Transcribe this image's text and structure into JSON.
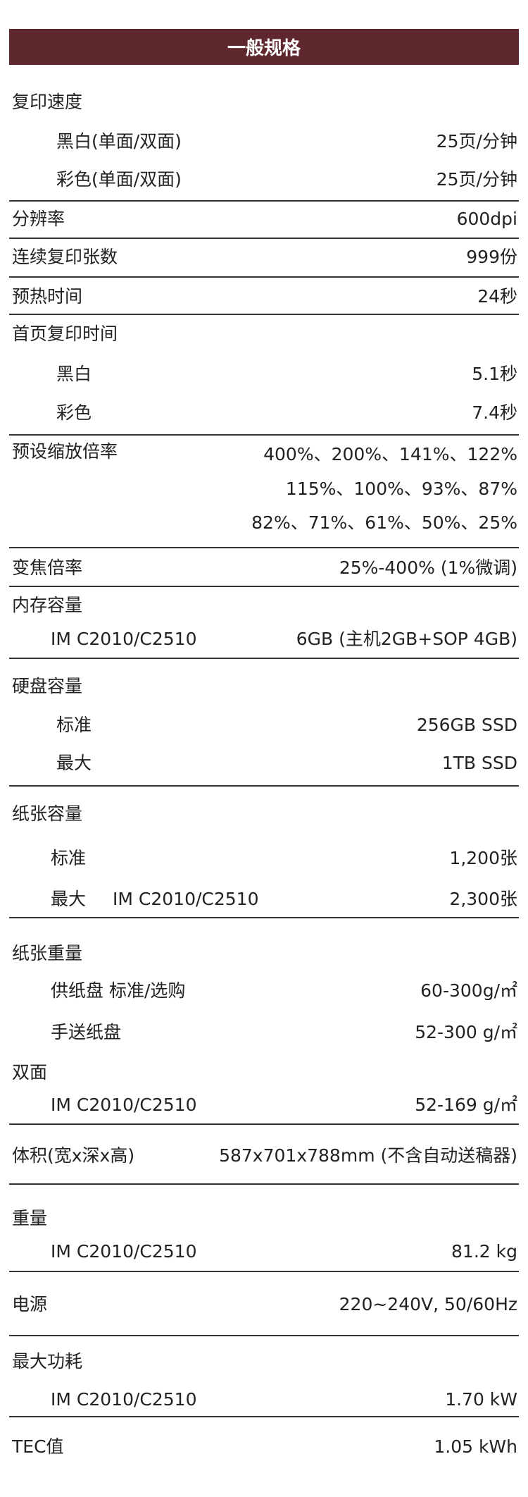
{
  "header": {
    "title": "一般规格"
  },
  "copy_speed": {
    "label": "复印速度",
    "bw_label": "黑白(单面/双面)",
    "bw_value": "25页/分钟",
    "color_label": "彩色(单面/双面)",
    "color_value": "25页/分钟"
  },
  "resolution": {
    "label": "分辨率",
    "value": "600dpi"
  },
  "continuous": {
    "label": "连续复印张数",
    "value": "999份"
  },
  "warmup": {
    "label": "预热时间",
    "value": "24秒"
  },
  "first_copy": {
    "label": "首页复印时间",
    "bw_label": "黑白",
    "bw_value": "5.1秒",
    "color_label": "彩色",
    "color_value": "7.4秒"
  },
  "preset_zoom": {
    "label": "预设缩放倍率",
    "lines": [
      "400%、200%、141%、122%",
      "115%、100%、93%、87%",
      "82%、71%、61%、50%、25%"
    ]
  },
  "zoom": {
    "label": "变焦倍率",
    "value": "25%-400% (1%微调)"
  },
  "memory": {
    "label": "内存容量",
    "model": "IM C2010/C2510",
    "value": "6GB (主机2GB+SOP 4GB)"
  },
  "hdd": {
    "label": "硬盘容量",
    "std_label": "标准",
    "std_value": "256GB SSD",
    "max_label": "最大",
    "max_value": "1TB SSD"
  },
  "paper_capacity": {
    "label": "纸张容量",
    "std_label": "标准",
    "std_value": "1,200张",
    "max_label": "最大",
    "max_model": "IM C2010/C2510",
    "max_value": "2,300张"
  },
  "paper_weight": {
    "label": "纸张重量",
    "tray_label": "供纸盘 标准/选购",
    "tray_value": "60-300g/㎡",
    "bypass_label": "手送纸盘",
    "bypass_value": "52-300 g/㎡",
    "duplex_label": "双面",
    "duplex_model": "IM C2010/C2510",
    "duplex_value": "52-169 g/㎡"
  },
  "dimensions": {
    "label": "体积(宽x深x高)",
    "value": "587x701x788mm (不含自动送稿器)"
  },
  "weight": {
    "label": "重量",
    "model": "IM C2010/C2510",
    "value": "81.2 kg"
  },
  "power": {
    "label": "电源",
    "value": "220~240V, 50/60Hz"
  },
  "max_power": {
    "label": "最大功耗",
    "model": "IM C2010/C2510",
    "value": "1.70 kW"
  },
  "tec": {
    "label": "TEC值",
    "value": "1.05 kWh"
  }
}
